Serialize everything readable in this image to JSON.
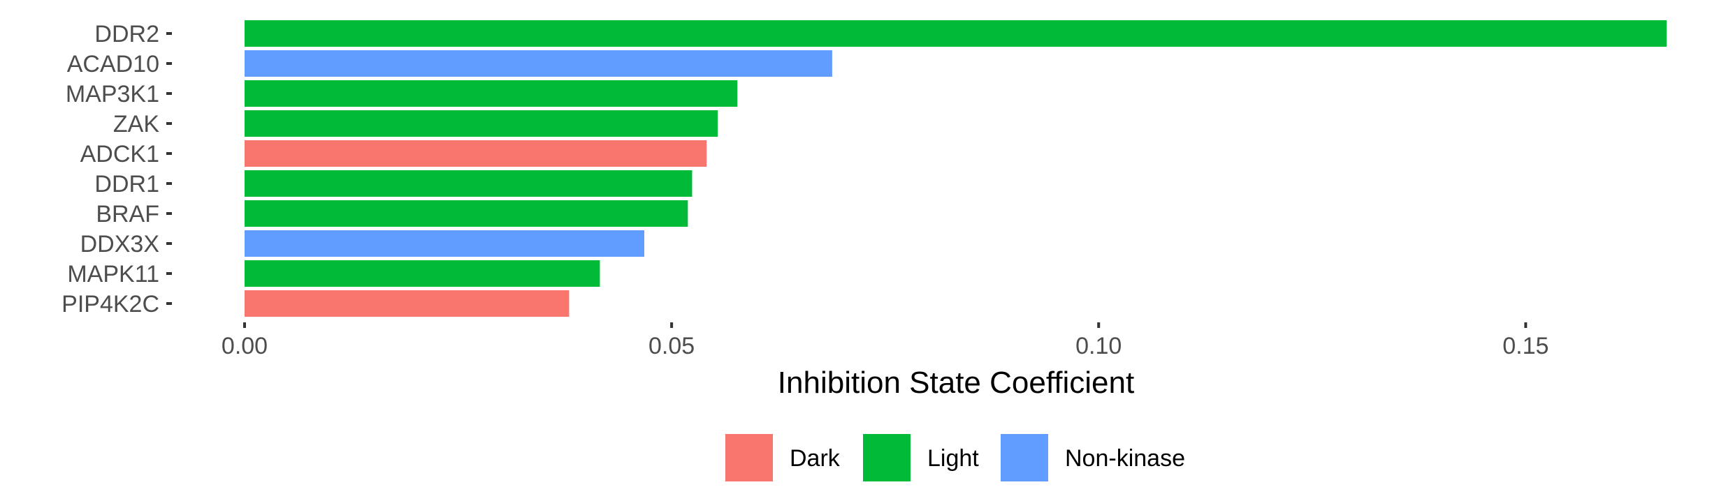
{
  "chart_data": {
    "type": "bar",
    "orientation": "horizontal",
    "categories": [
      "DDR2",
      "ACAD10",
      "MAP3K1",
      "ZAK",
      "ADCK1",
      "DDR1",
      "BRAF",
      "DDX3X",
      "MAPK11",
      "PIP4K2C"
    ],
    "values": [
      0.1665,
      0.0688,
      0.0577,
      0.0554,
      0.0541,
      0.0524,
      0.0519,
      0.0468,
      0.0416,
      0.038
    ],
    "groups": [
      "Light",
      "Non-kinase",
      "Light",
      "Light",
      "Dark",
      "Light",
      "Light",
      "Non-kinase",
      "Light",
      "Dark"
    ],
    "xlabel": "Inhibition State Coefficient",
    "ylabel": "",
    "xlim": [
      0,
      0.1665
    ],
    "xticks": [
      0.0,
      0.05,
      0.1,
      0.15
    ],
    "xtick_labels": [
      "0.00",
      "0.05",
      "0.10",
      "0.15"
    ],
    "grid": false,
    "legend": {
      "position": "bottom",
      "entries": [
        {
          "label": "Dark",
          "color": "#F8766D"
        },
        {
          "label": "Light",
          "color": "#00BA38"
        },
        {
          "label": "Non-kinase",
          "color": "#619CFF"
        }
      ]
    }
  }
}
